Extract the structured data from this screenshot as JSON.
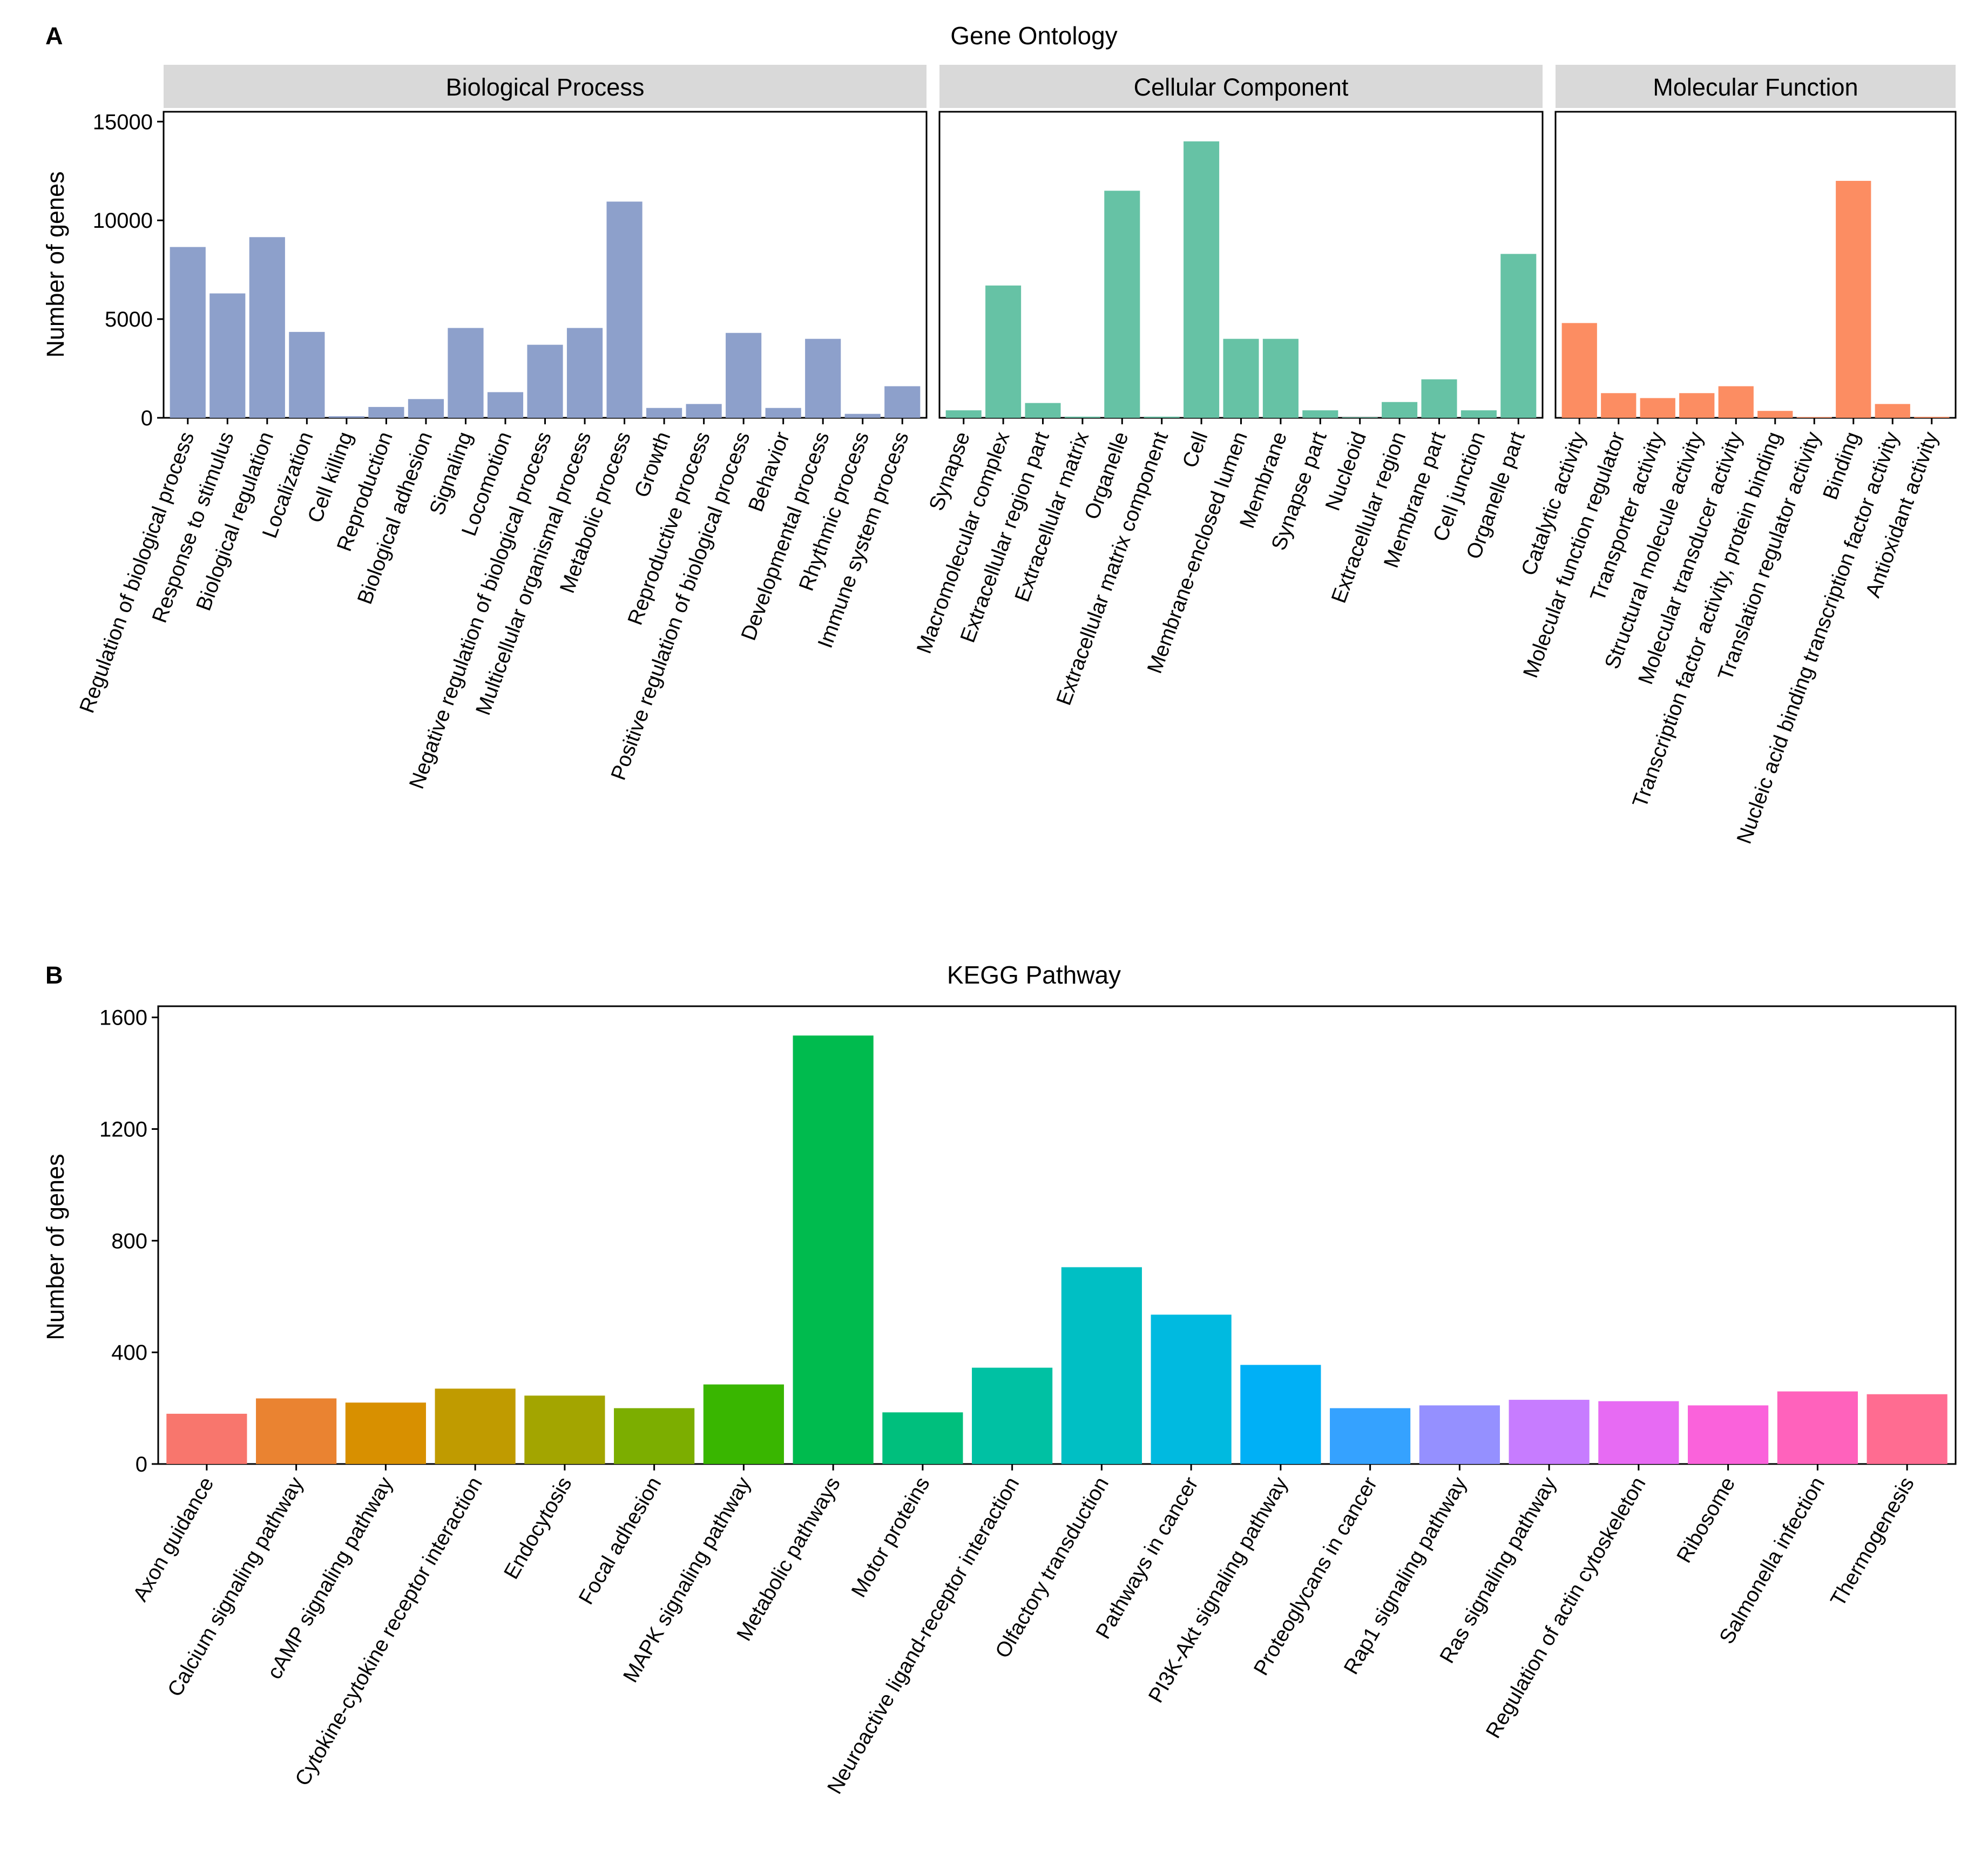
{
  "panel_a": {
    "letter": "A",
    "title": "Gene Ontology",
    "ylabel": "Number of genes"
  },
  "panel_b": {
    "letter": "B",
    "title": "KEGG Pathway",
    "ylabel": "Number of genes"
  },
  "chart_data": [
    {
      "type": "bar",
      "title": "Gene Ontology",
      "ylabel": "Number of genes",
      "xlabel": "",
      "ylim": [
        0,
        15500
      ],
      "yticks": [
        0,
        5000,
        10000,
        15000
      ],
      "grid": false,
      "facets": [
        {
          "name": "Biological Process",
          "color": "#8DA0CB",
          "categories": [
            "Regulation of biological process",
            "Response to stimulus",
            "Biological regulation",
            "Localization",
            "Cell killing",
            "Reproduction",
            "Biological adhesion",
            "Signaling",
            "Locomotion",
            "Negative regulation of biological process",
            "Multicellular organismal process",
            "Metabolic process",
            "Growth",
            "Reproductive process",
            "Positive regulation of biological process",
            "Behavior",
            "Developmental process",
            "Rhythmic process",
            "Immune system process"
          ],
          "values": [
            8650,
            6300,
            9150,
            4350,
            80,
            550,
            950,
            4550,
            1300,
            3700,
            4550,
            10950,
            500,
            700,
            4300,
            500,
            4000,
            200,
            1600
          ]
        },
        {
          "name": "Cellular Component",
          "color": "#66C2A5",
          "categories": [
            "Synapse",
            "Macromolecular complex",
            "Extracellular region part",
            "Extracellular matrix",
            "Organelle",
            "Extracellular matrix component",
            "Cell",
            "Membrane-enclosed lumen",
            "Membrane",
            "Synapse part",
            "Nucleoid",
            "Extracellular region",
            "Membrane part",
            "Cell junction",
            "Organelle part"
          ],
          "values": [
            380,
            6700,
            750,
            60,
            11500,
            60,
            14000,
            4000,
            4000,
            380,
            30,
            800,
            1950,
            380,
            8300
          ]
        },
        {
          "name": "Molecular Function",
          "color": "#FC8D62",
          "categories": [
            "Catalytic activity",
            "Molecular function regulator",
            "Transporter activity",
            "Structural molecule activity",
            "Molecular transducer activity",
            "Transcription factor activity, protein binding",
            "Translation regulator activity",
            "Binding",
            "Nucleic acid binding transcription factor activity",
            "Antioxidant activity"
          ],
          "values": [
            4800,
            1250,
            1000,
            1250,
            1600,
            350,
            40,
            12000,
            700,
            50
          ]
        }
      ]
    },
    {
      "type": "bar",
      "title": "KEGG Pathway",
      "ylabel": "Number of genes",
      "xlabel": "",
      "ylim": [
        0,
        1640
      ],
      "yticks": [
        0,
        400,
        800,
        1200,
        1600
      ],
      "grid": false,
      "categories": [
        "Axon guidance",
        "Calcium signaling pathway",
        "cAMP signaling pathway",
        "Cytokine-cytokine receptor interaction",
        "Endocytosis",
        "Focal adhesion",
        "MAPK signaling pathway",
        "Metabolic pathways",
        "Motor proteins",
        "Neuroactive ligand-receptor interaction",
        "Olfactory transduction",
        "Pathways in cancer",
        "PI3K-Akt signaling pathway",
        "Proteoglycans in cancer",
        "Rap1 signaling pathway",
        "Ras signaling pathway",
        "Regulation of actin cytoskeleton",
        "Ribosome",
        "Salmonella infection",
        "Thermogenesis"
      ],
      "values": [
        180,
        235,
        220,
        270,
        245,
        200,
        285,
        1535,
        185,
        345,
        705,
        535,
        355,
        200,
        210,
        230,
        225,
        210,
        260,
        250
      ],
      "colors": [
        "#F8766D",
        "#EA8331",
        "#D89000",
        "#C09B00",
        "#A3A500",
        "#7CAE00",
        "#39B600",
        "#00BB4E",
        "#00BF7D",
        "#00C1A3",
        "#00BFC4",
        "#00BAE0",
        "#00B0F6",
        "#35A2FF",
        "#9590FF",
        "#C77CFF",
        "#E76BF3",
        "#FA62DB",
        "#FF62BC",
        "#FF6C91"
      ]
    }
  ]
}
